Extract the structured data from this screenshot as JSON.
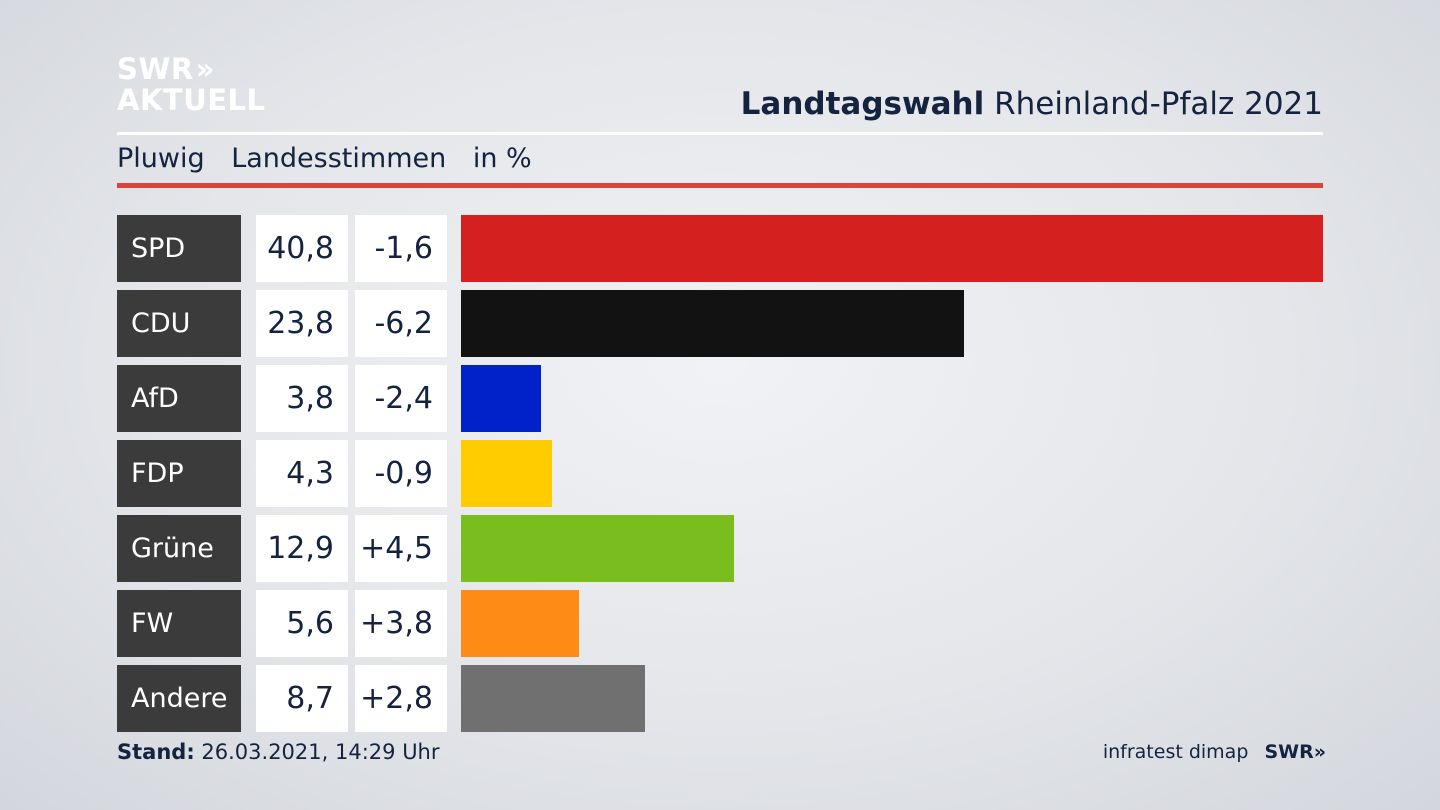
{
  "logo": {
    "line1": "SWR",
    "chevrons": "»",
    "line2": "AKTUELL"
  },
  "header": {
    "title_bold": "Landtagswahl",
    "title_rest": "Rheinland-Pfalz 2021"
  },
  "subheader": {
    "source": "Pluwig",
    "measure": "Landesstimmen",
    "unit": "in %"
  },
  "colors": {
    "accent_rule": "#d9453c",
    "label_bg": "#3b3b3b"
  },
  "chart_data": {
    "type": "bar",
    "orientation": "horizontal",
    "categories": [
      "SPD",
      "CDU",
      "AfD",
      "FDP",
      "Grüne",
      "FW",
      "Andere"
    ],
    "values": [
      40.8,
      23.8,
      3.8,
      4.3,
      12.9,
      5.6,
      8.7
    ],
    "value_labels": [
      "40,8",
      "23,8",
      "3,8",
      "4,3",
      "12,9",
      "5,6",
      "8,7"
    ],
    "changes": [
      -1.6,
      -6.2,
      -2.4,
      -0.9,
      4.5,
      3.8,
      2.8
    ],
    "change_labels": [
      "-1,6",
      "-6,2",
      "-2,4",
      "-0,9",
      "+4,5",
      "+3,8",
      "+2,8"
    ],
    "bar_colors": [
      "#d52020",
      "#121212",
      "#0022c8",
      "#ffcc00",
      "#7abd1e",
      "#ff8c17",
      "#707070"
    ],
    "xlim": [
      0,
      40.8
    ]
  },
  "footer": {
    "stand_label": "Stand:",
    "stand_value": "26.03.2021, 14:29 Uhr",
    "credit": "infratest dimap",
    "brand": "SWR",
    "brand_chevrons": "»"
  }
}
